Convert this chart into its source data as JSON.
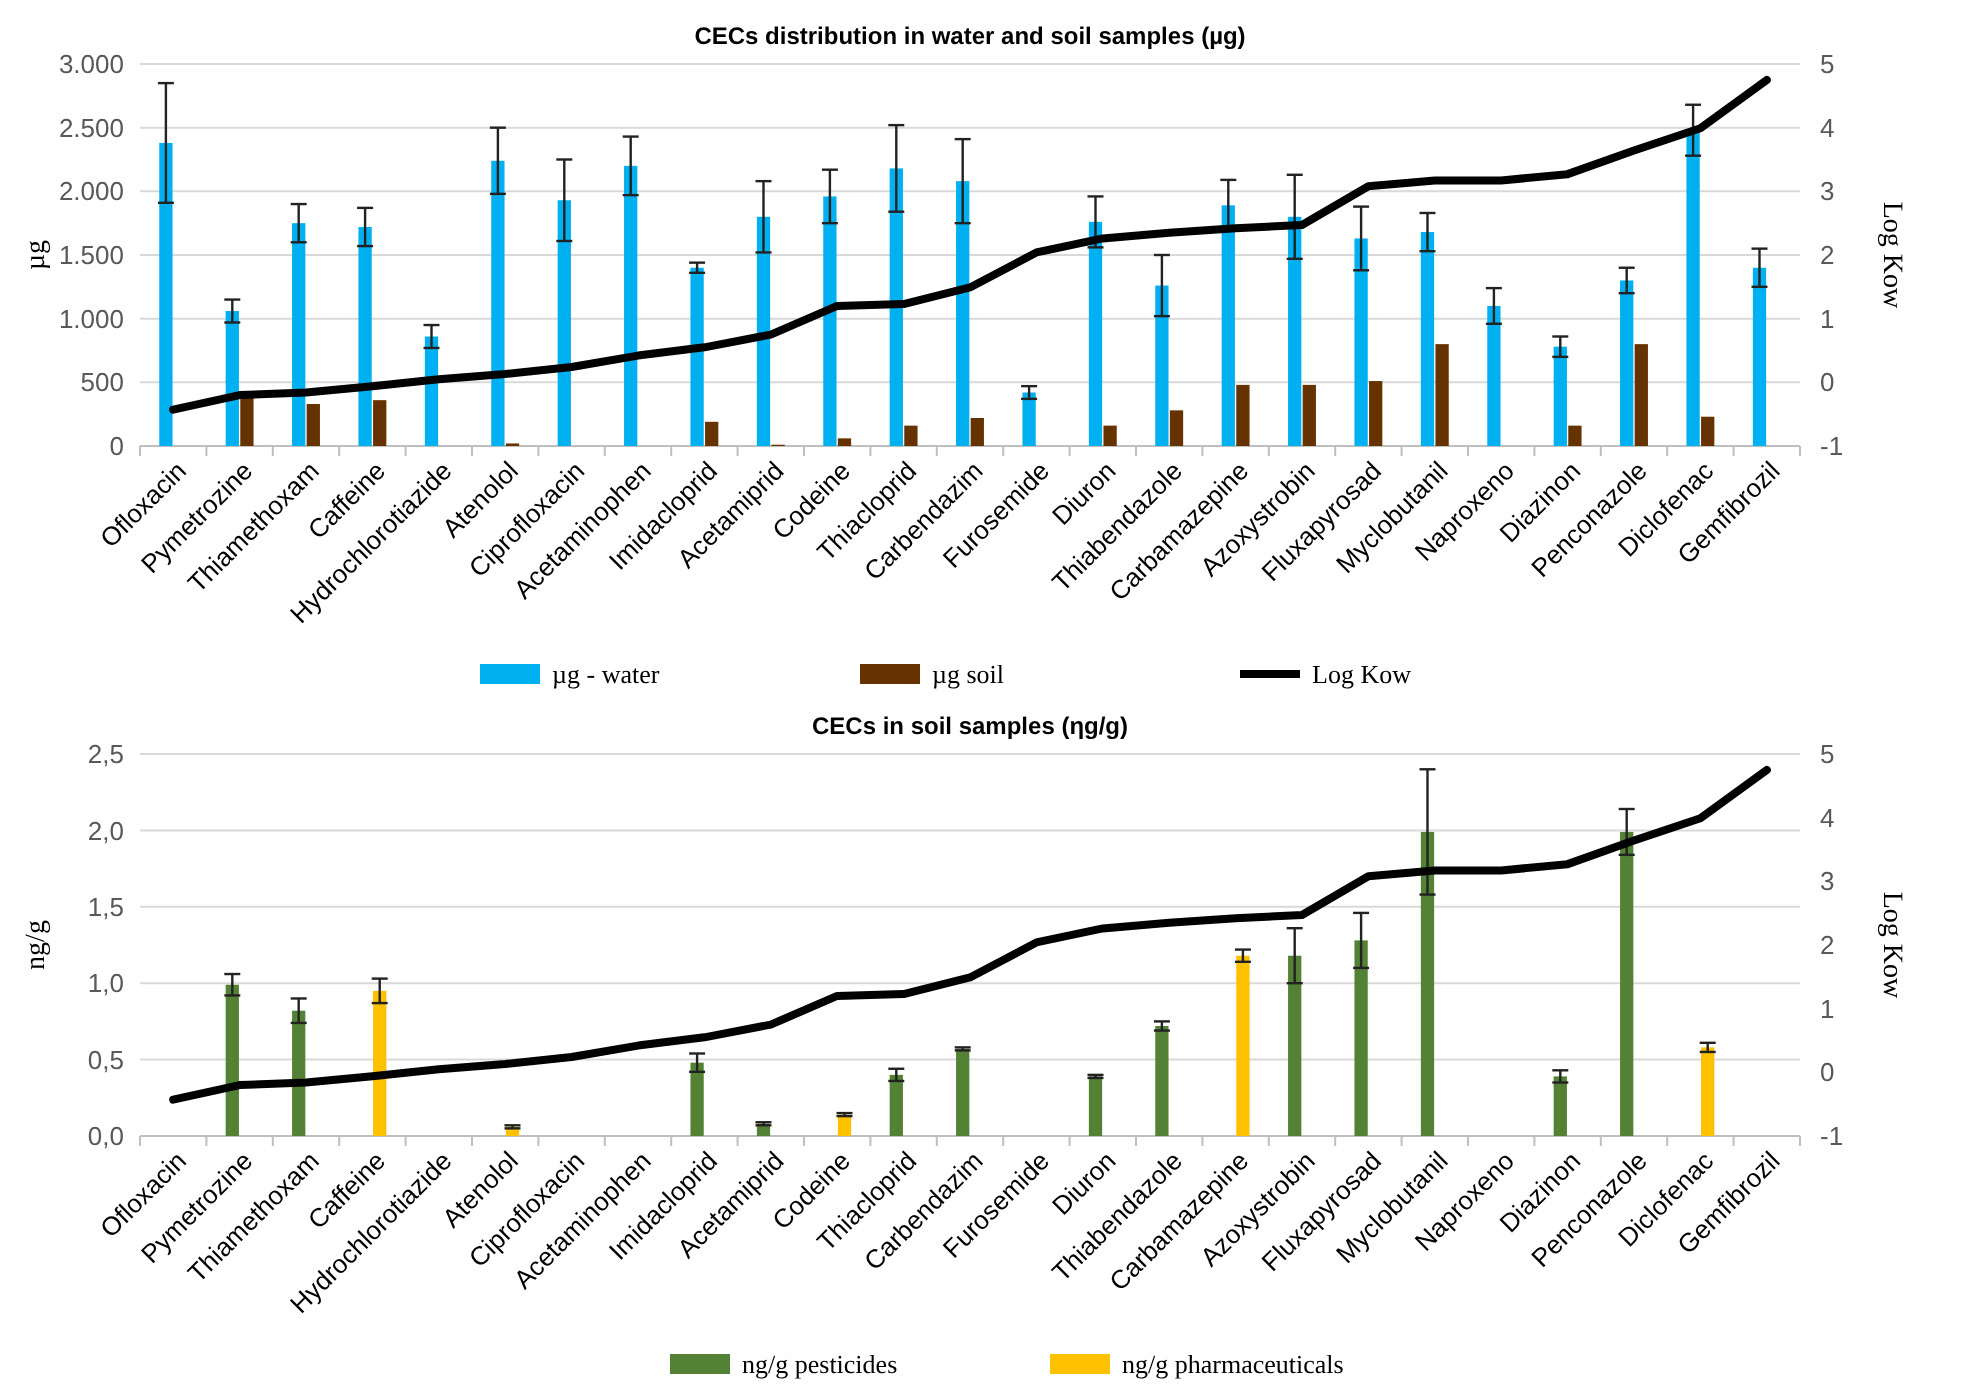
{
  "chart_data": [
    {
      "type": "bar",
      "title": "CECs distribution in water and soil samples (µg)",
      "ylabel": "µg",
      "y2label": "Log Kow",
      "categories": [
        "Ofloxacin",
        "Pymetrozine",
        "Thiamethoxam",
        "Caffeine",
        "Hydrochlorotiazide",
        "Atenolol",
        "Ciprofloxacin",
        "Acetaminophen",
        "Imidacloprid",
        "Acetamiprid",
        "Codeine",
        "Thiacloprid",
        "Carbendazim",
        "Furosemide",
        "Diuron",
        "Thiabendazole",
        "Carbamazepine",
        "Azoxystrobin",
        "Fluxapyrosad",
        "Myclobutanil",
        "Naproxeno",
        "Diazinon",
        "Penconazole",
        "Diclofenac",
        "Gemfibrozil"
      ],
      "series": [
        {
          "name": "µg - water",
          "color": "#00b0f0",
          "values": [
            2380,
            1060,
            1750,
            1720,
            860,
            2240,
            1930,
            2200,
            1400,
            1800,
            1960,
            2180,
            2080,
            420,
            1760,
            1260,
            1890,
            1800,
            1630,
            1680,
            1100,
            780,
            1300,
            2480,
            1400
          ],
          "errors": [
            470,
            90,
            150,
            150,
            90,
            260,
            320,
            230,
            40,
            280,
            210,
            340,
            330,
            50,
            200,
            240,
            200,
            330,
            250,
            150,
            140,
            80,
            100,
            200,
            150
          ]
        },
        {
          "name": "µg soil",
          "color": "#663300",
          "values": [
            null,
            390,
            330,
            360,
            null,
            20,
            null,
            null,
            190,
            10,
            60,
            160,
            220,
            null,
            160,
            280,
            480,
            480,
            510,
            800,
            null,
            160,
            800,
            230,
            null
          ]
        },
        {
          "name": "Log Kow",
          "type": "line",
          "axis": "y2",
          "color": "#000000",
          "values": [
            -0.43,
            -0.2,
            -0.16,
            -0.06,
            0.05,
            0.13,
            0.24,
            0.42,
            0.55,
            0.75,
            1.2,
            1.23,
            1.49,
            2.04,
            2.26,
            2.35,
            2.42,
            2.47,
            3.08,
            3.17,
            3.17,
            3.27,
            3.64,
            3.99,
            4.75
          ]
        }
      ],
      "ylim": [
        0,
        3000
      ],
      "yticks": [
        {
          "value": 0,
          "label": "0"
        },
        {
          "value": 500,
          "label": "500"
        },
        {
          "value": 1000,
          "label": "1.000"
        },
        {
          "value": 1500,
          "label": "1.500"
        },
        {
          "value": 2000,
          "label": "2.000"
        },
        {
          "value": 2500,
          "label": "2.500"
        },
        {
          "value": 3000,
          "label": "3.000"
        }
      ],
      "y2lim": [
        -1,
        5
      ],
      "y2ticks": [
        -1,
        0,
        1,
        2,
        3,
        4,
        5
      ],
      "grid": "y",
      "legend": "bottom",
      "marker": "none",
      "line_style": "solid"
    },
    {
      "type": "bar",
      "title": "CECs in soil samples (ηg/g)",
      "ylabel": "ng/g",
      "y2label": "Log Kow",
      "categories": [
        "Ofloxacin",
        "Pymetrozine",
        "Thiamethoxam",
        "Caffeine",
        "Hydrochlorotiazide",
        "Atenolol",
        "Ciprofloxacin",
        "Acetaminophen",
        "Imidacloprid",
        "Acetamiprid",
        "Codeine",
        "Thiacloprid",
        "Carbendazim",
        "Furosemide",
        "Diuron",
        "Thiabendazole",
        "Carbamazepine",
        "Azoxystrobin",
        "Fluxapyrosad",
        "Myclobutanil",
        "Naproxeno",
        "Diazinon",
        "Penconazole",
        "Diclofenac",
        "Gemfibrozil"
      ],
      "series": [
        {
          "name": "ng/g pesticides",
          "color": "#548235",
          "values": [
            null,
            0.99,
            0.82,
            null,
            null,
            null,
            null,
            null,
            0.48,
            0.08,
            null,
            0.4,
            0.57,
            null,
            0.39,
            0.72,
            null,
            1.18,
            1.28,
            1.99,
            null,
            0.39,
            1.99,
            null,
            null
          ],
          "errors": [
            null,
            0.07,
            0.08,
            null,
            null,
            null,
            null,
            null,
            0.06,
            0.01,
            null,
            0.04,
            0.01,
            null,
            0.01,
            0.03,
            null,
            0.18,
            0.18,
            0.41,
            null,
            0.04,
            0.15,
            null,
            null
          ]
        },
        {
          "name": "ng/g pharmaceuticals",
          "color": "#ffc000",
          "values": [
            null,
            null,
            null,
            0.95,
            null,
            0.06,
            null,
            null,
            null,
            null,
            0.14,
            null,
            null,
            null,
            null,
            null,
            1.18,
            null,
            null,
            null,
            null,
            null,
            null,
            0.58,
            null
          ],
          "errors": [
            null,
            null,
            null,
            0.08,
            null,
            0.01,
            null,
            null,
            null,
            null,
            0.01,
            null,
            null,
            null,
            null,
            null,
            0.04,
            null,
            null,
            null,
            null,
            null,
            null,
            0.03,
            null
          ]
        },
        {
          "type": "line",
          "axis": "y2",
          "color": "#000000",
          "values": [
            -0.43,
            -0.2,
            -0.16,
            -0.06,
            0.05,
            0.13,
            0.24,
            0.42,
            0.55,
            0.75,
            1.2,
            1.23,
            1.49,
            2.04,
            2.26,
            2.35,
            2.42,
            2.47,
            3.08,
            3.17,
            3.17,
            3.27,
            3.64,
            3.99,
            4.75
          ]
        }
      ],
      "ylim": [
        0,
        2.5
      ],
      "yticks": [
        {
          "value": 0,
          "label": "0,0"
        },
        {
          "value": 0.5,
          "label": "0,5"
        },
        {
          "value": 1,
          "label": "1,0"
        },
        {
          "value": 1.5,
          "label": "1,5"
        },
        {
          "value": 2,
          "label": "2,0"
        },
        {
          "value": 2.5,
          "label": "2,5"
        }
      ],
      "y2lim": [
        -1,
        5
      ],
      "y2ticks": [
        -1,
        0,
        1,
        2,
        3,
        4,
        5
      ],
      "grid": "y",
      "legend": "bottom",
      "marker": "none",
      "line_style": "solid"
    }
  ]
}
